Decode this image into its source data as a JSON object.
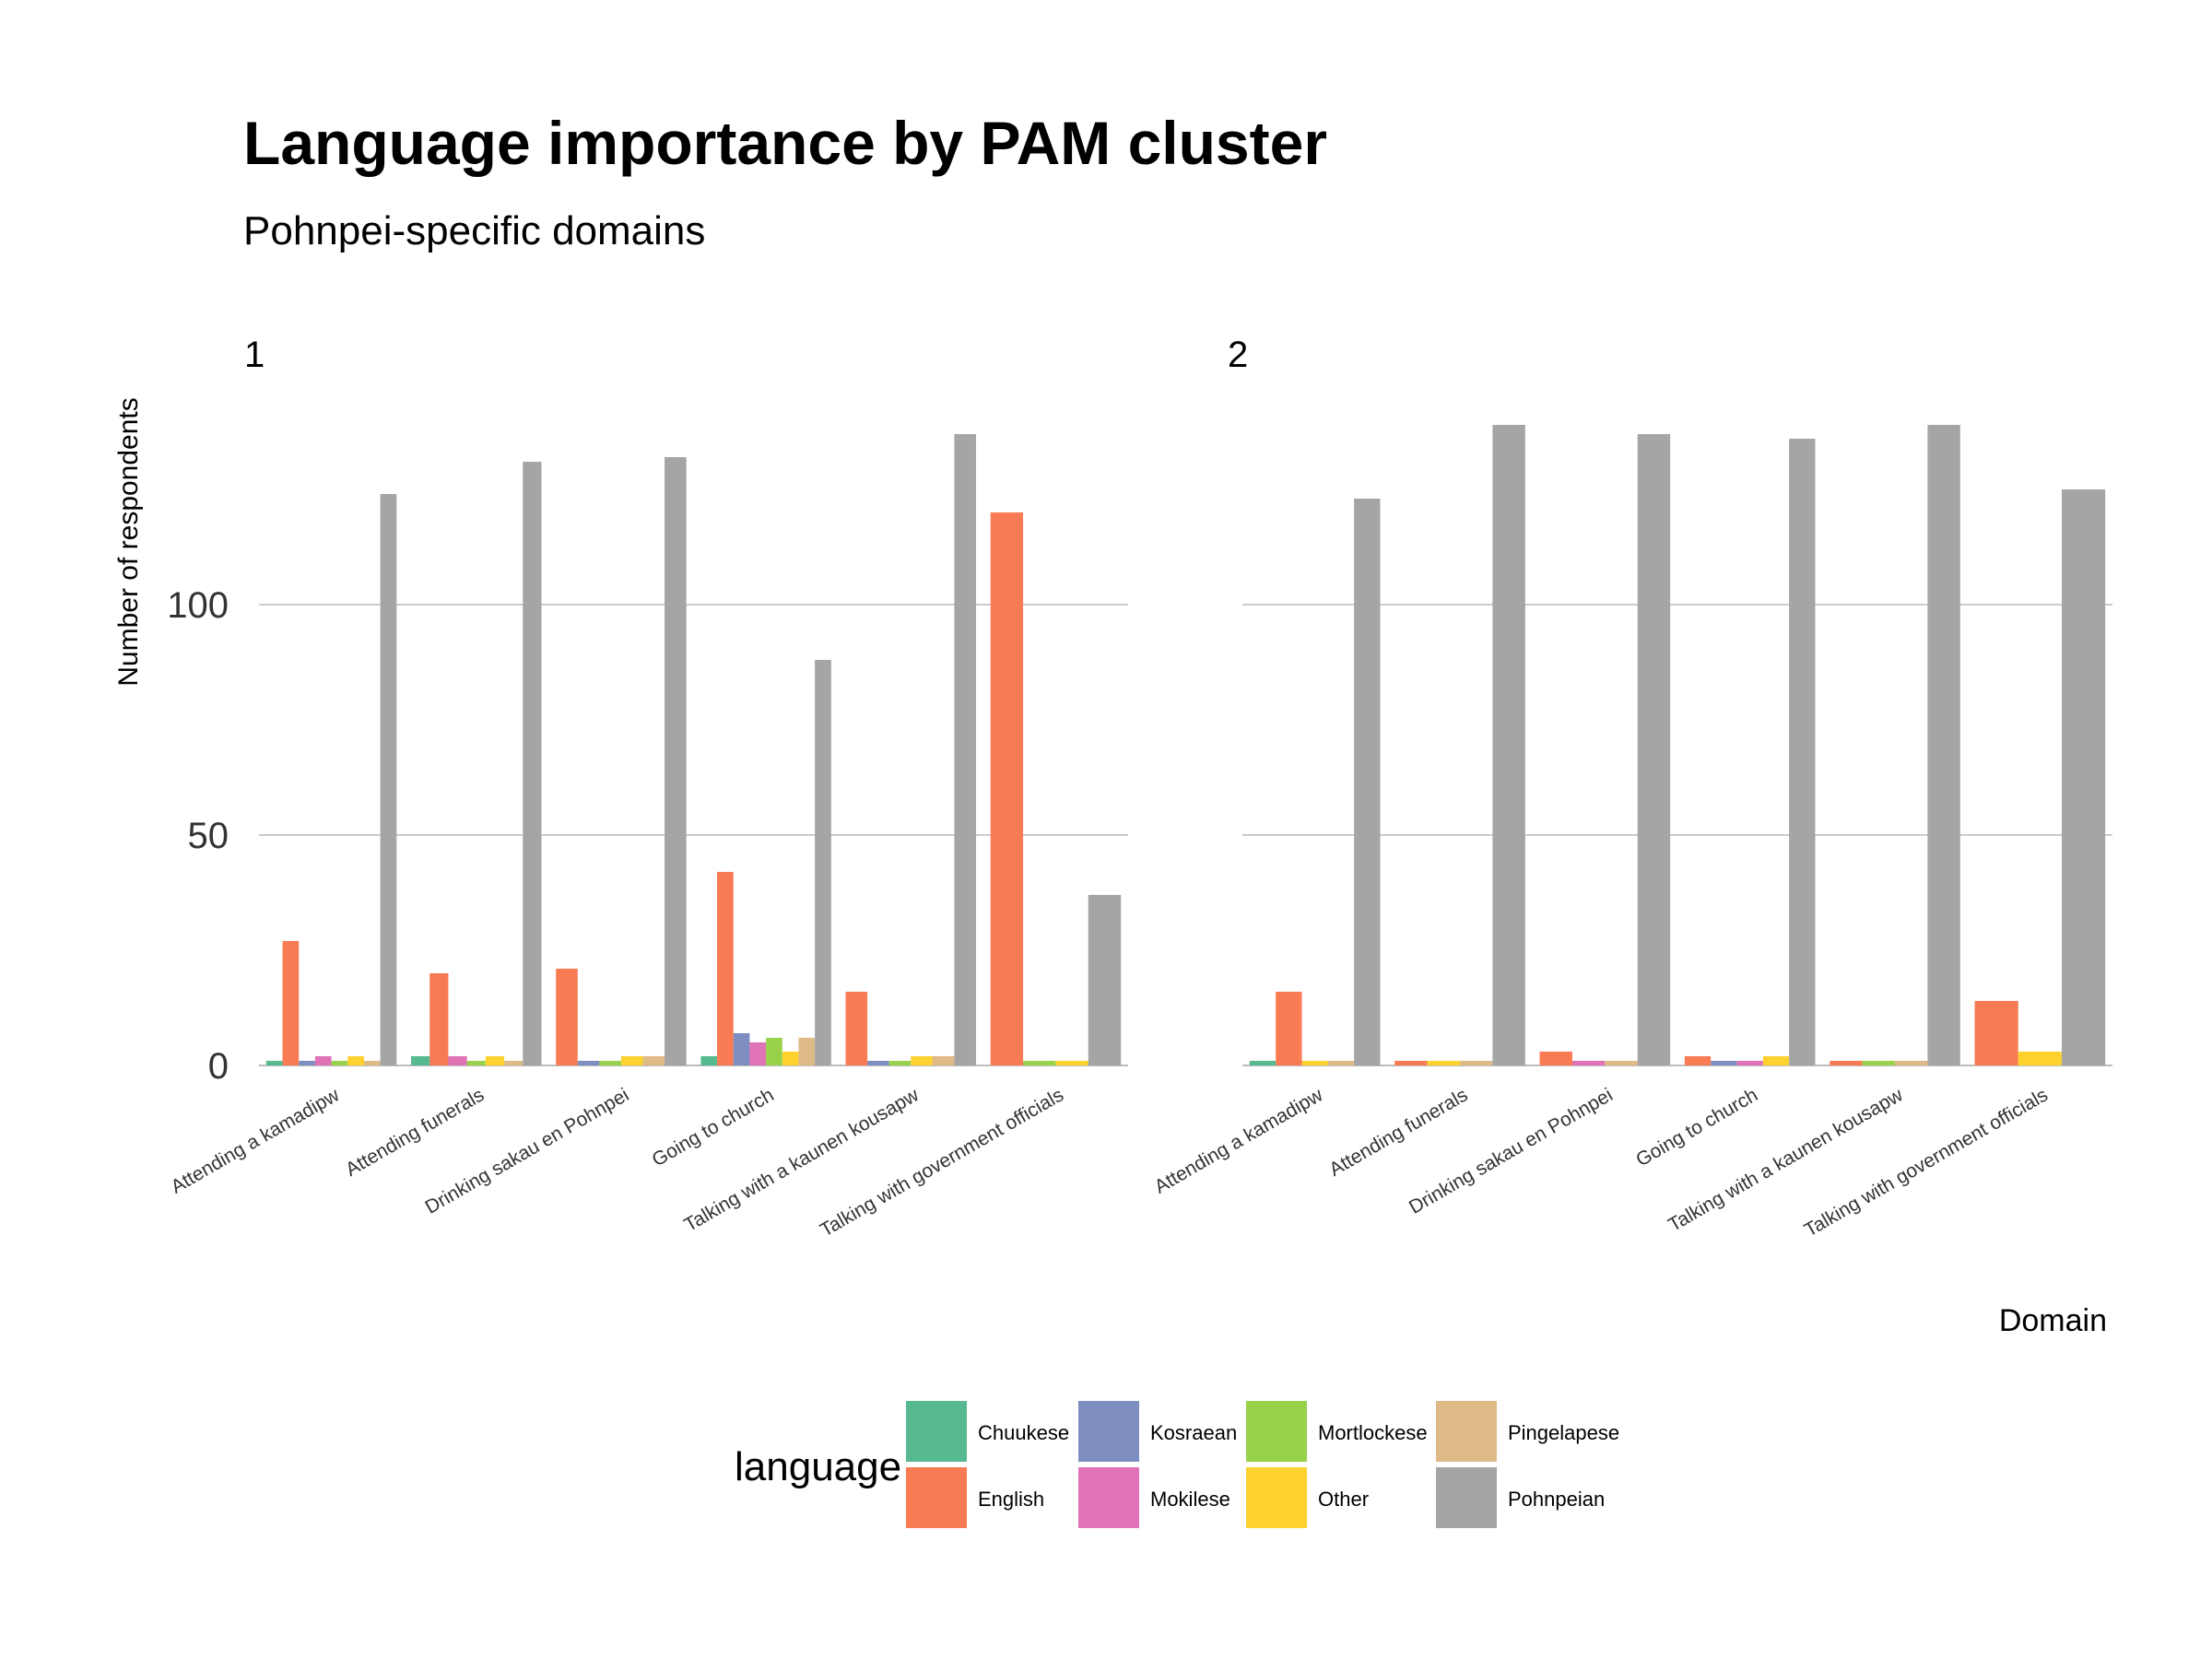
{
  "chart_data": {
    "type": "bar",
    "title": "Language importance by PAM cluster",
    "subtitle": "Pohnpei-specific domains",
    "xlabel": "Domain",
    "ylabel": "Number of respondents",
    "ylim": [
      0,
      140
    ],
    "yticks": [
      0,
      50,
      100
    ],
    "grid": true,
    "legend": {
      "title": "language",
      "position": "bottom",
      "entries": [
        {
          "name": "Chuukese",
          "color": "#56B990"
        },
        {
          "name": "English",
          "color": "#F87B53"
        },
        {
          "name": "Kosraean",
          "color": "#7F8EC0"
        },
        {
          "name": "Mokilese",
          "color": "#DF73B6"
        },
        {
          "name": "Mortlockese",
          "color": "#98D24A"
        },
        {
          "name": "Other",
          "color": "#FDD22E"
        },
        {
          "name": "Pingelapese",
          "color": "#DEBA86"
        },
        {
          "name": "Pohnpeian",
          "color": "#A5A5A5"
        }
      ]
    },
    "categories": [
      "Attending a kamadipw",
      "Attending funerals",
      "Drinking sakau en Pohnpei",
      "Going to church",
      "Talking with a kaunen kousapw",
      "Talking with government officials"
    ],
    "panels": [
      {
        "label": "1",
        "groups": [
          {
            "category": "Attending a kamadipw",
            "bars": [
              {
                "language": "Chuukese",
                "value": 1
              },
              {
                "language": "English",
                "value": 27
              },
              {
                "language": "Kosraean",
                "value": 1
              },
              {
                "language": "Mokilese",
                "value": 2
              },
              {
                "language": "Mortlockese",
                "value": 1
              },
              {
                "language": "Other",
                "value": 2
              },
              {
                "language": "Pingelapese",
                "value": 1
              },
              {
                "language": "Pohnpeian",
                "value": 124
              }
            ]
          },
          {
            "category": "Attending funerals",
            "bars": [
              {
                "language": "Chuukese",
                "value": 2
              },
              {
                "language": "English",
                "value": 20
              },
              {
                "language": "Mokilese",
                "value": 2
              },
              {
                "language": "Mortlockese",
                "value": 1
              },
              {
                "language": "Other",
                "value": 2
              },
              {
                "language": "Pingelapese",
                "value": 1
              },
              {
                "language": "Pohnpeian",
                "value": 131
              }
            ]
          },
          {
            "category": "Drinking sakau en Pohnpei",
            "bars": [
              {
                "language": "English",
                "value": 21
              },
              {
                "language": "Kosraean",
                "value": 1
              },
              {
                "language": "Mortlockese",
                "value": 1
              },
              {
                "language": "Other",
                "value": 2
              },
              {
                "language": "Pingelapese",
                "value": 2
              },
              {
                "language": "Pohnpeian",
                "value": 132
              }
            ]
          },
          {
            "category": "Going to church",
            "bars": [
              {
                "language": "Chuukese",
                "value": 2
              },
              {
                "language": "English",
                "value": 42
              },
              {
                "language": "Kosraean",
                "value": 7
              },
              {
                "language": "Mokilese",
                "value": 5
              },
              {
                "language": "Mortlockese",
                "value": 6
              },
              {
                "language": "Other",
                "value": 3
              },
              {
                "language": "Pingelapese",
                "value": 6
              },
              {
                "language": "Pohnpeian",
                "value": 88
              }
            ]
          },
          {
            "category": "Talking with a kaunen kousapw",
            "bars": [
              {
                "language": "English",
                "value": 16
              },
              {
                "language": "Kosraean",
                "value": 1
              },
              {
                "language": "Mortlockese",
                "value": 1
              },
              {
                "language": "Other",
                "value": 2
              },
              {
                "language": "Pingelapese",
                "value": 2
              },
              {
                "language": "Pohnpeian",
                "value": 137
              }
            ]
          },
          {
            "category": "Talking with government officials",
            "bars": [
              {
                "language": "English",
                "value": 120
              },
              {
                "language": "Mortlockese",
                "value": 1
              },
              {
                "language": "Other",
                "value": 1
              },
              {
                "language": "Pohnpeian",
                "value": 37
              }
            ]
          }
        ]
      },
      {
        "label": "2",
        "groups": [
          {
            "category": "Attending a kamadipw",
            "bars": [
              {
                "language": "Chuukese",
                "value": 1
              },
              {
                "language": "English",
                "value": 16
              },
              {
                "language": "Other",
                "value": 1
              },
              {
                "language": "Pingelapese",
                "value": 1
              },
              {
                "language": "Pohnpeian",
                "value": 123
              }
            ]
          },
          {
            "category": "Attending funerals",
            "bars": [
              {
                "language": "English",
                "value": 1
              },
              {
                "language": "Other",
                "value": 1
              },
              {
                "language": "Pingelapese",
                "value": 1
              },
              {
                "language": "Pohnpeian",
                "value": 139
              }
            ]
          },
          {
            "category": "Drinking sakau en Pohnpei",
            "bars": [
              {
                "language": "English",
                "value": 3
              },
              {
                "language": "Mokilese",
                "value": 1
              },
              {
                "language": "Pingelapese",
                "value": 1
              },
              {
                "language": "Pohnpeian",
                "value": 137
              }
            ]
          },
          {
            "category": "Going to church",
            "bars": [
              {
                "language": "English",
                "value": 2
              },
              {
                "language": "Kosraean",
                "value": 1
              },
              {
                "language": "Mokilese",
                "value": 1
              },
              {
                "language": "Other",
                "value": 2
              },
              {
                "language": "Pohnpeian",
                "value": 136
              }
            ]
          },
          {
            "category": "Talking with a kaunen kousapw",
            "bars": [
              {
                "language": "English",
                "value": 1
              },
              {
                "language": "Mortlockese",
                "value": 1
              },
              {
                "language": "Pingelapese",
                "value": 1
              },
              {
                "language": "Pohnpeian",
                "value": 139
              }
            ]
          },
          {
            "category": "Talking with government officials",
            "bars": [
              {
                "language": "English",
                "value": 14
              },
              {
                "language": "Other",
                "value": 3
              },
              {
                "language": "Pohnpeian",
                "value": 125
              }
            ]
          }
        ]
      }
    ]
  }
}
